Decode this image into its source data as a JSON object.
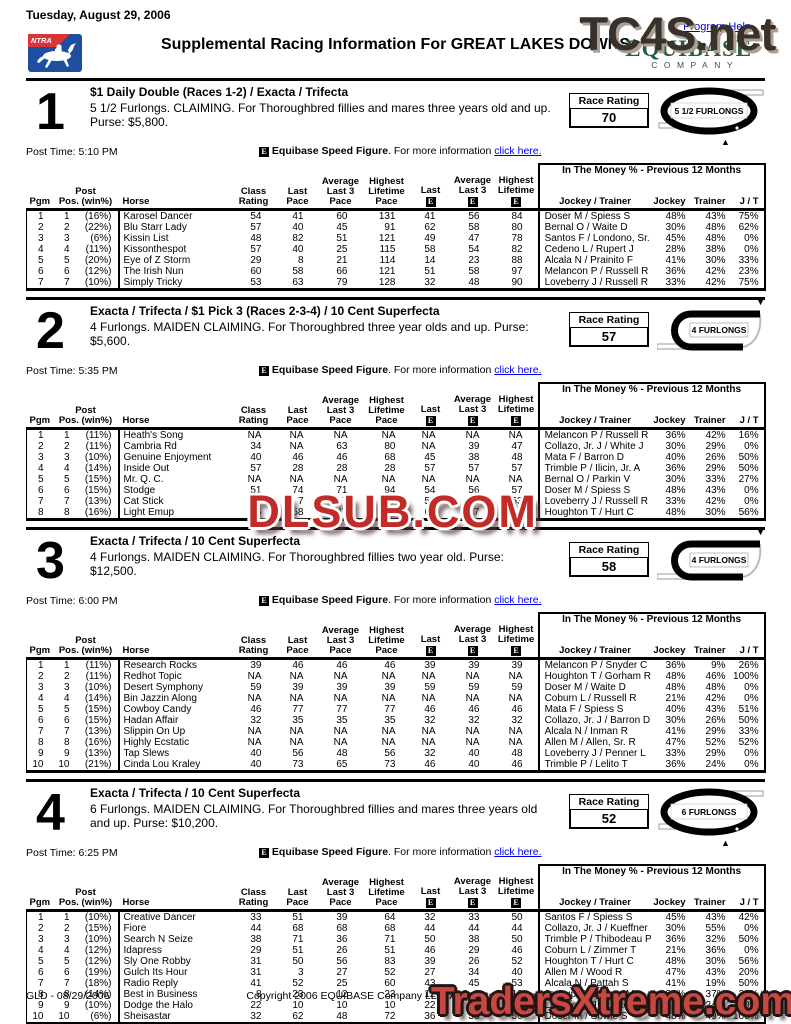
{
  "header": {
    "date": "Tuesday, August 29, 2006",
    "title": "Supplemental Racing Information For GREAT LAKES DOWNS",
    "program_help": "Program Help",
    "ntra_label": "NTRA",
    "equibase_wordmark": "EQUIBASE",
    "equibase_tm": "™",
    "equibase_company": "COMPANY"
  },
  "labels": {
    "race_rating": "Race Rating"
  },
  "speed_note": {
    "e_symbol": "E",
    "title": "Equibase Speed Figure",
    "rest": ". For more information",
    "link": "click here."
  },
  "table_header": {
    "group_title": "In The Money % - Previous 12 Months",
    "e_symbol": "E",
    "columns": [
      {
        "key": "pgm",
        "lines": [
          "Pgm"
        ]
      },
      {
        "key": "post-pos",
        "lines": [
          "Post",
          "Pos. (win%)"
        ]
      },
      {
        "key": "horse",
        "lines": [
          "Horse"
        ]
      },
      {
        "key": "class-rating",
        "lines": [
          "Class",
          "Rating"
        ]
      },
      {
        "key": "last-pace",
        "lines": [
          "Last",
          "Pace"
        ]
      },
      {
        "key": "avg-last3-pace",
        "lines": [
          "Average",
          "Last 3",
          "Pace"
        ]
      },
      {
        "key": "highest-lifetime-pace",
        "lines": [
          "Highest",
          "Lifetime",
          "Pace"
        ]
      },
      {
        "key": "last-e",
        "lines": [
          "Last"
        ],
        "e_icon": true
      },
      {
        "key": "avg-last3-e",
        "lines": [
          "Average",
          "Last 3"
        ],
        "e_icon": true
      },
      {
        "key": "highest-lifetime-e",
        "lines": [
          "Highest",
          "Lifetime"
        ],
        "e_icon": true
      },
      {
        "key": "jockey-trainer",
        "lines": [
          "Jockey / Trainer"
        ]
      },
      {
        "key": "jockey-pct",
        "lines": [
          "Jockey"
        ]
      },
      {
        "key": "trainer-pct",
        "lines": [
          "Trainer"
        ]
      },
      {
        "key": "jt-pct",
        "lines": [
          "J / T"
        ]
      }
    ]
  },
  "races": [
    {
      "number": "1",
      "wagers": "$1 Daily Double (Races 1-2) / Exacta / Trifecta",
      "conditions": "5 1/2 Furlongs. CLAIMING. For Thoroughbred fillies and mares three years old and up. Purse: $5,800.",
      "post_time": "Post Time: 5:10 PM",
      "race_rating": "70",
      "distance_label": "5 1/2 FURLONGS",
      "track_shape": "oval",
      "marker": "▲",
      "rows": [
        [
          "1",
          "1",
          "(16%)",
          "Karosel Dancer",
          "54",
          "41",
          "60",
          "131",
          "41",
          "56",
          "84",
          "Doser M / Spiess S",
          "48%",
          "43%",
          "75%"
        ],
        [
          "2",
          "2",
          "(22%)",
          "Blu Starr Lady",
          "57",
          "40",
          "45",
          "91",
          "62",
          "58",
          "80",
          "Bernal O / Waite D",
          "30%",
          "48%",
          "62%"
        ],
        [
          "3",
          "3",
          "(6%)",
          "Kissin List",
          "48",
          "82",
          "51",
          "121",
          "49",
          "47",
          "78",
          "Santos F / Londono, Sr. O",
          "45%",
          "48%",
          "0%"
        ],
        [
          "4",
          "4",
          "(11%)",
          "Kissonthespot",
          "57",
          "40",
          "25",
          "115",
          "58",
          "54",
          "82",
          "Cedeno L / Rupert J",
          "28%",
          "38%",
          "0%"
        ],
        [
          "5",
          "5",
          "(20%)",
          "Eye of Z Storm",
          "29",
          "8",
          "21",
          "114",
          "14",
          "23",
          "88",
          "Alcala N / Prainito F",
          "41%",
          "30%",
          "33%"
        ],
        [
          "6",
          "6",
          "(12%)",
          "The Irish Nun",
          "60",
          "58",
          "66",
          "121",
          "51",
          "58",
          "97",
          "Melancon P / Russell R",
          "36%",
          "42%",
          "23%"
        ],
        [
          "7",
          "7",
          "(10%)",
          "Simply Tricky",
          "53",
          "63",
          "79",
          "128",
          "32",
          "48",
          "90",
          "Loveberry J / Russell R",
          "33%",
          "42%",
          "75%"
        ]
      ]
    },
    {
      "number": "2",
      "wagers": "Exacta / Trifecta / $1 Pick 3 (Races 2-3-4) / 10 Cent Superfecta",
      "conditions": "4 Furlongs. MAIDEN CLAIMING. For Thoroughbred three year olds and up. Purse: $5,600.",
      "post_time": "Post Time: 5:35 PM",
      "race_rating": "57",
      "distance_label": "4 FURLONGS",
      "track_shape": "hairpin",
      "marker": "▼",
      "rows": [
        [
          "1",
          "1",
          "(11%)",
          "Heath's Song",
          "NA",
          "NA",
          "NA",
          "NA",
          "NA",
          "NA",
          "NA",
          "Melancon P / Russell R",
          "36%",
          "42%",
          "16%"
        ],
        [
          "2",
          "2",
          "(11%)",
          "Cambria Rd",
          "34",
          "NA",
          "63",
          "80",
          "NA",
          "39",
          "47",
          "Collazo, Jr. J / White J",
          "30%",
          "29%",
          "0%"
        ],
        [
          "3",
          "3",
          "(10%)",
          "Genuine Enjoyment",
          "40",
          "46",
          "46",
          "68",
          "45",
          "38",
          "48",
          "Mata F / Barron D",
          "40%",
          "26%",
          "50%"
        ],
        [
          "4",
          "4",
          "(14%)",
          "Inside Out",
          "57",
          "28",
          "28",
          "28",
          "57",
          "57",
          "57",
          "Trimble P / Ilicin, Jr. A",
          "36%",
          "29%",
          "50%"
        ],
        [
          "5",
          "5",
          "(15%)",
          "Mr. Q. C.",
          "NA",
          "NA",
          "NA",
          "NA",
          "NA",
          "NA",
          "NA",
          "Bernal O / Parkin V",
          "30%",
          "33%",
          "27%"
        ],
        [
          "6",
          "6",
          "(15%)",
          "Stodge",
          "51",
          "74",
          "71",
          "94",
          "54",
          "56",
          "57",
          "Doser M / Spiess S",
          "48%",
          "43%",
          "0%"
        ],
        [
          "7",
          "7",
          "(13%)",
          "Cat Stick",
          "53",
          "7",
          "7",
          "7",
          "53",
          "53",
          "53",
          "Loveberry J / Russell R",
          "33%",
          "42%",
          "0%"
        ],
        [
          "8",
          "8",
          "(16%)",
          "Light Emup",
          "45",
          "58",
          "47",
          "63",
          "61",
          "47",
          "61",
          "Houghton T / Hurt C",
          "48%",
          "30%",
          "56%"
        ]
      ]
    },
    {
      "number": "3",
      "wagers": "Exacta / Trifecta / 10 Cent Superfecta",
      "conditions": "4 Furlongs. MAIDEN CLAIMING. For Thoroughbred fillies two year old. Purse: $12,500.",
      "post_time": "Post Time: 6:00 PM",
      "race_rating": "58",
      "distance_label": "4 FURLONGS",
      "track_shape": "hairpin",
      "marker": "▼",
      "rows": [
        [
          "1",
          "1",
          "(11%)",
          "Research Rocks",
          "39",
          "46",
          "46",
          "46",
          "39",
          "39",
          "39",
          "Melancon P / Snyder C",
          "36%",
          "9%",
          "26%"
        ],
        [
          "2",
          "2",
          "(11%)",
          "Redhot Topic",
          "NA",
          "NA",
          "NA",
          "NA",
          "NA",
          "NA",
          "NA",
          "Houghton T / Gorham R",
          "48%",
          "46%",
          "100%"
        ],
        [
          "3",
          "3",
          "(10%)",
          "Desert Symphony",
          "59",
          "39",
          "39",
          "39",
          "59",
          "59",
          "59",
          "Doser M / Waite D",
          "48%",
          "48%",
          "0%"
        ],
        [
          "4",
          "4",
          "(14%)",
          "Bin Jazzin Along",
          "NA",
          "NA",
          "NA",
          "NA",
          "NA",
          "NA",
          "NA",
          "Coburn L / Russell R",
          "21%",
          "42%",
          "0%"
        ],
        [
          "5",
          "5",
          "(15%)",
          "Cowboy Candy",
          "46",
          "77",
          "77",
          "77",
          "46",
          "46",
          "46",
          "Mata F / Spiess S",
          "40%",
          "43%",
          "51%"
        ],
        [
          "6",
          "6",
          "(15%)",
          "Hadan Affair",
          "32",
          "35",
          "35",
          "35",
          "32",
          "32",
          "32",
          "Collazo, Jr. J / Barron D",
          "30%",
          "26%",
          "50%"
        ],
        [
          "7",
          "7",
          "(13%)",
          "Slippin On Up",
          "NA",
          "NA",
          "NA",
          "NA",
          "NA",
          "NA",
          "NA",
          "Alcala N / Inman R",
          "41%",
          "29%",
          "33%"
        ],
        [
          "8",
          "8",
          "(16%)",
          "Highly Ecstatic",
          "NA",
          "NA",
          "NA",
          "NA",
          "NA",
          "NA",
          "NA",
          "Allen M / Allen, Sr. R",
          "47%",
          "52%",
          "52%"
        ],
        [
          "9",
          "9",
          "(13%)",
          "Tap Slews",
          "40",
          "56",
          "48",
          "56",
          "32",
          "40",
          "48",
          "Loveberry J / Penner L",
          "33%",
          "29%",
          "0%"
        ],
        [
          "10",
          "10",
          "(21%)",
          "Cinda Lou Kraley",
          "40",
          "73",
          "65",
          "73",
          "46",
          "40",
          "46",
          "Trimble P / Lelito T",
          "36%",
          "24%",
          "0%"
        ]
      ]
    },
    {
      "number": "4",
      "wagers": "Exacta / Trifecta / 10 Cent Superfecta",
      "conditions": "6 Furlongs. MAIDEN CLAIMING. For Thoroughbred fillies and mares three years old and up. Purse: $10,200.",
      "post_time": "Post Time: 6:25 PM",
      "race_rating": "52",
      "distance_label": "6 FURLONGS",
      "track_shape": "oval",
      "marker": "▲",
      "rows": [
        [
          "1",
          "1",
          "(10%)",
          "Creative Dancer",
          "33",
          "51",
          "39",
          "64",
          "32",
          "33",
          "50",
          "Santos F / Spiess S",
          "45%",
          "43%",
          "42%"
        ],
        [
          "2",
          "2",
          "(15%)",
          "Fiore",
          "44",
          "68",
          "68",
          "68",
          "44",
          "44",
          "44",
          "Collazo, Jr. J / Kueffner D",
          "30%",
          "55%",
          "0%"
        ],
        [
          "3",
          "3",
          "(10%)",
          "Search N Seize",
          "38",
          "71",
          "36",
          "71",
          "50",
          "38",
          "50",
          "Trimble P / Thibodeau P",
          "36%",
          "32%",
          "50%"
        ],
        [
          "4",
          "4",
          "(12%)",
          "Idapress",
          "29",
          "51",
          "26",
          "51",
          "46",
          "29",
          "46",
          "Coburn L / Zimmer T",
          "21%",
          "36%",
          "0%"
        ],
        [
          "5",
          "5",
          "(12%)",
          "Sly One Robby",
          "31",
          "50",
          "56",
          "83",
          "39",
          "26",
          "52",
          "Houghton T / Hurt C",
          "48%",
          "30%",
          "56%"
        ],
        [
          "6",
          "6",
          "(19%)",
          "Gulch Its Hour",
          "31",
          "3",
          "27",
          "52",
          "27",
          "34",
          "40",
          "Allen M / Wood R",
          "47%",
          "43%",
          "20%"
        ],
        [
          "7",
          "7",
          "(18%)",
          "Radio Reply",
          "41",
          "52",
          "25",
          "60",
          "43",
          "45",
          "53",
          "Alcala N / Pattah S",
          "41%",
          "19%",
          "50%"
        ],
        [
          "8",
          "8",
          "(14%)",
          "Best in Business",
          "8",
          "23",
          "12",
          "23",
          "12",
          "8",
          "12",
          "Jessup T / Barron M",
          "34%",
          "37%",
          "20%"
        ],
        [
          "9",
          "9",
          "(10%)",
          "Dodge the Halo",
          "22",
          "10",
          "10",
          "10",
          "22",
          "22",
          "22",
          "Loveberry J / Lelito T",
          "33%",
          "24%",
          "0%"
        ],
        [
          "10",
          "10",
          "(6%)",
          "Sheisastar",
          "32",
          "62",
          "48",
          "72",
          "36",
          "38",
          "56",
          "Doser M / Sowle S",
          "48%",
          "49%",
          "100%"
        ]
      ]
    }
  ],
  "footer": {
    "left": "GLD - 08/29/2006",
    "center": "Copyright 2006 EQUIBASE Company LLC. All Rights Reserved."
  },
  "watermarks": {
    "top": "TC4S.net",
    "middle": "DLSUB.COM",
    "bottom": "TradersXtreme.com"
  },
  "colors": {
    "link": "#0000ee",
    "equibase_green": "#2a5c41",
    "watermark_red": "#c22b27",
    "ntra_blue": "#1d4f9e",
    "ntra_red": "#d93438"
  }
}
